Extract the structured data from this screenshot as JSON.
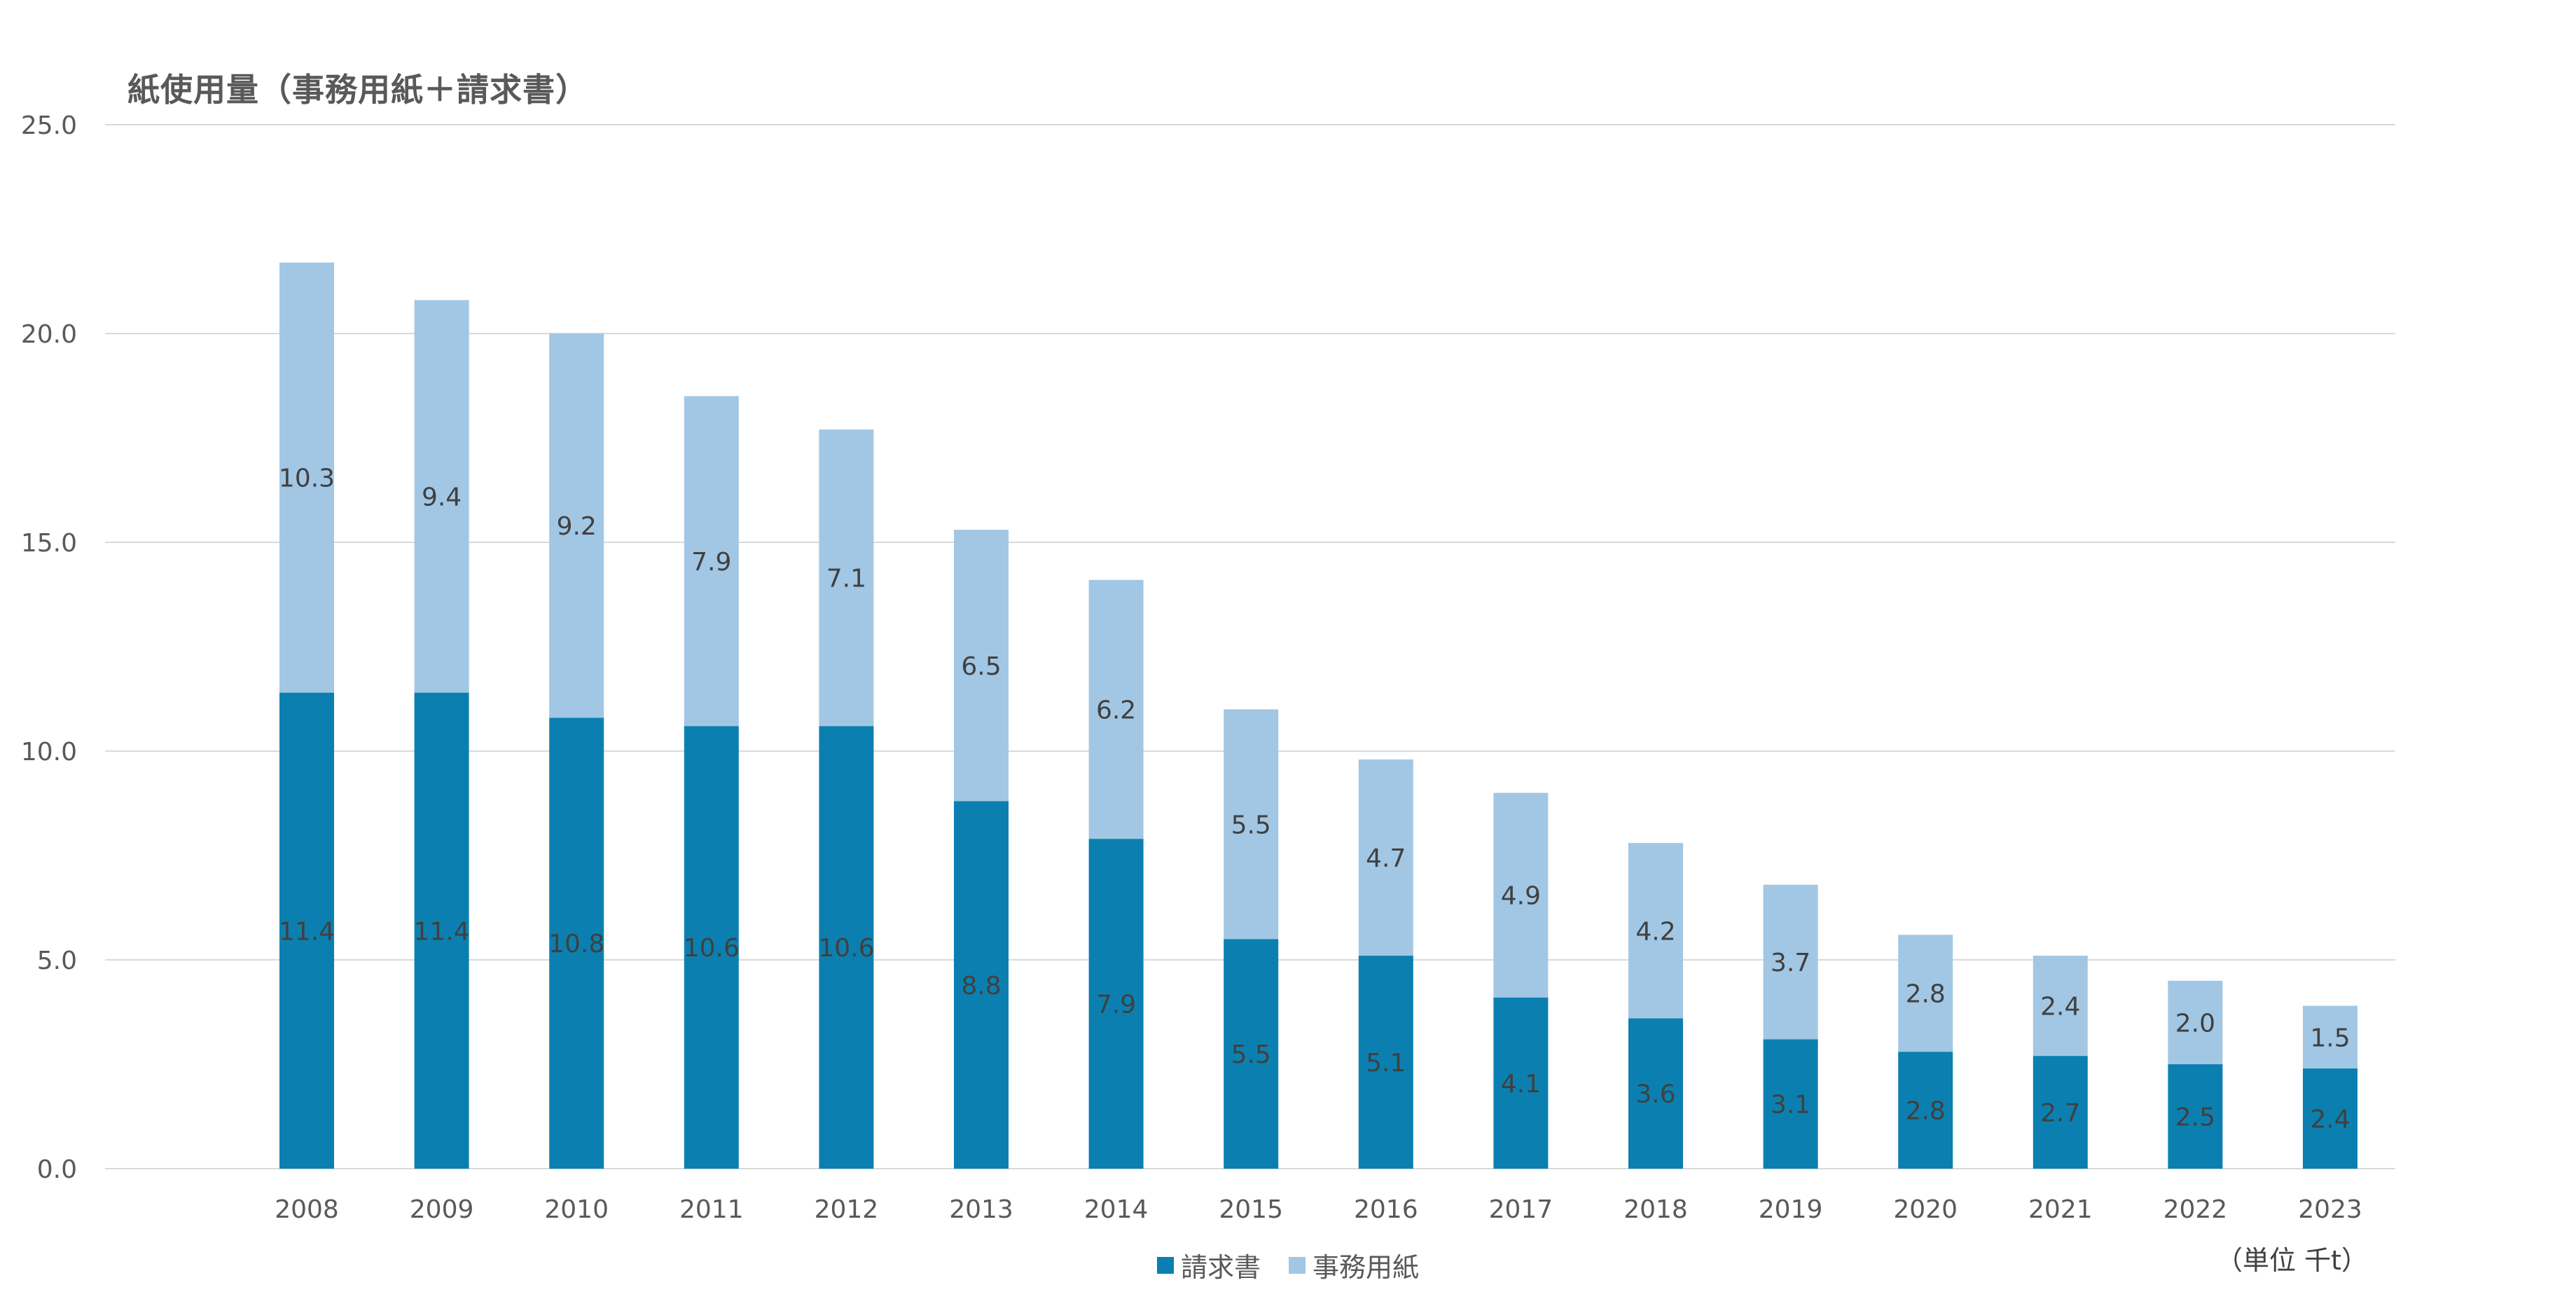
{
  "chart_data": {
    "type": "bar",
    "stacked": true,
    "title": "紙使用量（事務用紙＋請求書）",
    "unit_label": "（単位 千t）",
    "categories": [
      "2008",
      "2009",
      "2010",
      "2011",
      "2012",
      "2013",
      "2014",
      "2015",
      "2016",
      "2017",
      "2018",
      "2019",
      "2020",
      "2021",
      "2022",
      "2023"
    ],
    "series": [
      {
        "name": "請求書",
        "color": "#0b80b0",
        "values": [
          11.4,
          11.4,
          10.8,
          10.6,
          10.6,
          8.8,
          7.9,
          5.5,
          5.1,
          4.1,
          3.6,
          3.1,
          2.8,
          2.7,
          2.5,
          2.4
        ],
        "labels": [
          "11.4",
          "11.4",
          "10.8",
          "10.6",
          "10.6",
          "8.8",
          "7.9",
          "5.5",
          "5.1",
          "4.1",
          "3.6",
          "3.1",
          "2.8",
          "2.7",
          "2.5",
          "2.4"
        ]
      },
      {
        "name": "事務用紙",
        "color": "#a2c7e4",
        "values": [
          10.3,
          9.4,
          9.2,
          7.9,
          7.1,
          6.5,
          6.2,
          5.5,
          4.7,
          4.9,
          4.2,
          3.7,
          2.8,
          2.4,
          2.0,
          1.5
        ],
        "labels": [
          "10.3",
          "9.4",
          "9.2",
          "7.9",
          "7.1",
          "6.5",
          "6.2",
          "5.5",
          "4.7",
          "4.9",
          "4.2",
          "3.7",
          "2.8",
          "2.4",
          "2.0",
          "1.5"
        ]
      }
    ],
    "ylim": [
      0,
      25
    ],
    "yticks": [
      "0.0",
      "5.0",
      "10.0",
      "15.0",
      "20.0",
      "25.0"
    ],
    "grid": true,
    "legend_position": "bottom",
    "gridline_color": "#d9d9d9",
    "tick_label_color": "#595959",
    "data_label_color": "#404040"
  }
}
